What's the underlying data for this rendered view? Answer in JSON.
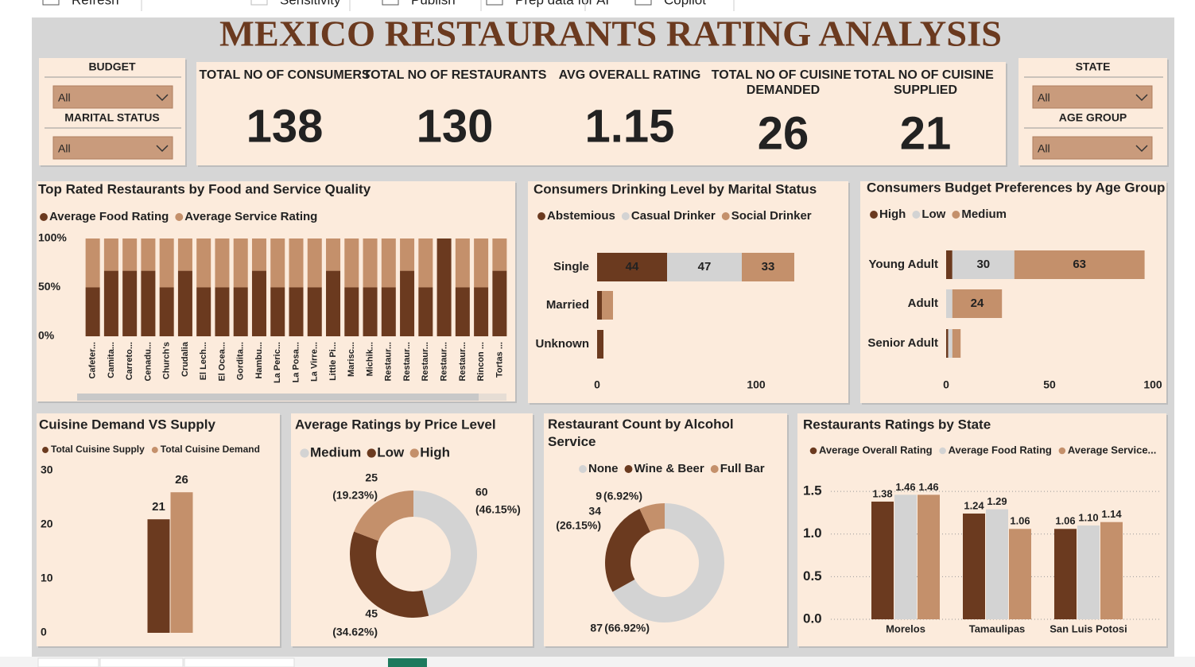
{
  "toolbar": [
    "Refresh",
    "Sensitivity",
    "Publish",
    "Prep data for AI",
    "Copilot"
  ],
  "title": "MEXICO RESTAURANTS RATING ANALYSIS",
  "slicers": [
    {
      "label": "BUDGET",
      "value": "All"
    },
    {
      "label": "MARITAL STATUS",
      "value": "All"
    },
    {
      "label": "STATE",
      "value": "All"
    },
    {
      "label": "AGE GROUP",
      "value": "All"
    }
  ],
  "cards": [
    {
      "label": "TOTAL NO OF CONSUMERS",
      "value": 138
    },
    {
      "label": "TOTAL NO OF RESTAURANTS",
      "value": 130
    },
    {
      "label": "AVG OVERALL RATING",
      "value": 1.15
    },
    {
      "label": "TOTAL NO OF CUISINE DEMANDED",
      "value": 26
    },
    {
      "label": "TOTAL NO OF CUISINE SUPPLIED",
      "value": 21
    }
  ],
  "chart_data": [
    {
      "type": "bar",
      "stacking": "percent",
      "title": "Top Rated Restaurants by Food and Service Quality",
      "categories": [
        "Cafeter...",
        "Camita...",
        "Carreto...",
        "Cenadu...",
        "Church's",
        "Crudalia",
        "El Lech...",
        "El Ocea...",
        "Gordita...",
        "Hambu...",
        "La Peric...",
        "La Posa...",
        "La Virre...",
        "Little Pi...",
        "Marisc...",
        "Michik...",
        "Restaur...",
        "Restaur...",
        "Restaur...",
        "Restaur...",
        "Restaur...",
        "Rincon ...",
        "Tortas ..."
      ],
      "series": [
        {
          "name": "Average Food Rating",
          "color": "#6b3a1f",
          "values": [
            50,
            67,
            67,
            67,
            50,
            67,
            50,
            50,
            50,
            67,
            50,
            50,
            50,
            67,
            50,
            50,
            50,
            67,
            50,
            100,
            50,
            50,
            67
          ]
        },
        {
          "name": "Average Service Rating",
          "color": "#c4906b",
          "values": [
            50,
            33,
            33,
            33,
            50,
            33,
            50,
            50,
            50,
            33,
            50,
            50,
            50,
            33,
            50,
            50,
            50,
            33,
            50,
            0,
            50,
            50,
            33
          ]
        }
      ],
      "ylim": [
        0,
        100
      ],
      "yticks": [
        {
          "value": 100,
          "label": "100%"
        },
        {
          "value": 50,
          "label": "50%"
        },
        {
          "value": 0,
          "label": "0%"
        }
      ],
      "grid": false
    },
    {
      "type": "hbar",
      "stacking": "normal",
      "title": "Consumers Drinking Level by Marital Status",
      "categories": [
        "Single",
        "Married",
        "Unknown"
      ],
      "series": [
        {
          "name": "Abstemious",
          "color": "#6b3a1f",
          "values": [
            44,
            3,
            4
          ]
        },
        {
          "name": "Casual Drinker",
          "color": "#d3d3d3",
          "values": [
            47,
            0,
            0
          ]
        },
        {
          "name": "Social Drinker",
          "color": "#c4906b",
          "values": [
            33,
            7,
            0
          ]
        }
      ],
      "xlim": [
        0,
        150
      ],
      "xticks": [
        0,
        100
      ]
    },
    {
      "type": "hbar",
      "stacking": "normal",
      "title": "Consumers Budget Preferences by Age Group",
      "categories": [
        "Young Adult",
        "Adult",
        "Senior Adult"
      ],
      "series": [
        {
          "name": "High",
          "color": "#6b3a1f",
          "values": [
            3,
            0,
            1
          ]
        },
        {
          "name": "Low",
          "color": "#d3d3d3",
          "values": [
            30,
            3,
            2
          ]
        },
        {
          "name": "Medium",
          "color": "#c4906b",
          "values": [
            63,
            24,
            4
          ]
        }
      ],
      "xlim": [
        0,
        100
      ],
      "xticks": [
        0,
        50,
        100
      ]
    },
    {
      "type": "bar",
      "stacking": "none",
      "title": "Cuisine Demand VS Supply",
      "categories": [
        null
      ],
      "series": [
        {
          "name": "Total Cuisine Supply",
          "color": "#6b3a1f",
          "values": [
            21
          ]
        },
        {
          "name": "Total Cuisine Demand",
          "color": "#c4906b",
          "values": [
            26
          ]
        }
      ],
      "ylim": [
        0,
        30
      ],
      "yticks": [
        30,
        20,
        10,
        0
      ],
      "grid": false
    },
    {
      "type": "donut",
      "title": "Average Ratings by Price Level",
      "categories": [
        "Medium",
        "Low",
        "High"
      ],
      "colors": [
        "#d3d3d3",
        "#6b3a1f",
        "#c4906b"
      ],
      "values": [
        60,
        45,
        25
      ],
      "percentages": [
        46.15,
        34.62,
        19.23
      ],
      "percentage_labels": [
        "(46.15%)",
        "(34.62%)",
        "(19.23%)"
      ]
    },
    {
      "type": "donut",
      "title": "Restaurant Count by Alcohol Service",
      "categories": [
        "None",
        "Wine & Beer",
        "Full Bar"
      ],
      "colors": [
        "#d3d3d3",
        "#6b3a1f",
        "#c4906b"
      ],
      "values": [
        87,
        34,
        9
      ],
      "percentages": [
        66.92,
        26.15,
        6.92
      ],
      "percentage_labels": [
        "(66.92%)",
        "(26.15%)",
        "(6.92%)"
      ]
    },
    {
      "type": "bar",
      "stacking": "none",
      "title": "Restaurants Ratings by State",
      "categories": [
        "Morelos",
        "Tamaulipas",
        "San Luis Potosi"
      ],
      "series": [
        {
          "name": "Average Overall Rating",
          "color": "#6b3a1f",
          "values": [
            1.38,
            1.24,
            1.06
          ]
        },
        {
          "name": "Average Food Rating",
          "color": "#d3d3d3",
          "values": [
            1.46,
            1.29,
            1.1
          ],
          "value_labels": [
            "1.46",
            "1.29",
            "1.10"
          ]
        },
        {
          "name": "Average Service...",
          "color": "#c4906b",
          "values": [
            1.46,
            1.06,
            1.14
          ]
        }
      ],
      "ylim": [
        0,
        1.65
      ],
      "yticks": [
        {
          "value": 1.5,
          "label": "1.5"
        },
        {
          "value": 1,
          "label": "1.0"
        },
        {
          "value": 0.5,
          "label": "0.5"
        },
        {
          "value": 0,
          "label": "0.0"
        }
      ],
      "grid": true
    }
  ]
}
